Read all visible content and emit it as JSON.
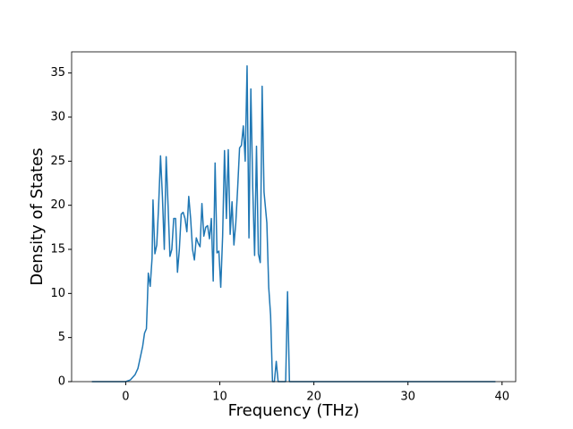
{
  "chart_data": {
    "type": "line",
    "x_label": "Frequency (THz)",
    "y_label": "Density of States",
    "color": "#1f77b4",
    "x": [
      -3.6,
      0,
      0.5,
      1,
      1.3,
      1.6,
      1.8,
      2,
      2.2,
      2.3,
      2.4,
      2.6,
      2.8,
      2.9,
      3.1,
      3.3,
      3.5,
      3.7,
      3.9,
      4.1,
      4.3,
      4.5,
      4.7,
      4.9,
      5.1,
      5.3,
      5.5,
      5.7,
      5.9,
      6.1,
      6.3,
      6.5,
      6.7,
      6.9,
      7.1,
      7.3,
      7.5,
      7.7,
      7.9,
      8.1,
      8.3,
      8.5,
      8.7,
      8.9,
      9.1,
      9.3,
      9.5,
      9.7,
      9.9,
      10.1,
      10.3,
      10.5,
      10.7,
      10.9,
      11.1,
      11.3,
      11.5,
      11.7,
      11.9,
      12.1,
      12.3,
      12.5,
      12.7,
      12.9,
      13.1,
      13.3,
      13.5,
      13.7,
      13.9,
      14.1,
      14.3,
      14.5,
      14.7,
      15,
      15.2,
      15.4,
      15.6,
      15.8,
      16,
      16.2,
      16.5,
      17,
      17.2,
      17.4,
      18,
      39.3
    ],
    "values": [
      0,
      0,
      0.2,
      0.8,
      1.5,
      3,
      4,
      5.5,
      6,
      9,
      12.3,
      10.8,
      14,
      20.6,
      14.5,
      15.5,
      20,
      25.6,
      21,
      15,
      25.5,
      20,
      14.2,
      15,
      18.5,
      18.5,
      12.4,
      15,
      19,
      19.2,
      18.5,
      17,
      21,
      18.5,
      15,
      13.8,
      16.3,
      15.7,
      15.3,
      20.2,
      16.5,
      17.5,
      17.7,
      16.2,
      18.5,
      11.4,
      24.8,
      14.6,
      14.8,
      10.7,
      16.5,
      26.2,
      18.5,
      26.3,
      16.7,
      20.4,
      15.5,
      18,
      22,
      26.5,
      26.8,
      29,
      25,
      35.8,
      16.3,
      33.2,
      22,
      14.3,
      26.7,
      14.5,
      13.5,
      33.5,
      21.5,
      18,
      10.7,
      7.5,
      0,
      0,
      2.3,
      0,
      0,
      0,
      10.2,
      0,
      0,
      0
    ],
    "xlim": [
      -5.75,
      41.45
    ],
    "ylim": [
      0,
      37.4
    ],
    "xticks": [
      0,
      10,
      20,
      30,
      40
    ],
    "yticks": [
      0,
      5,
      10,
      15,
      20,
      25,
      30,
      35
    ]
  }
}
